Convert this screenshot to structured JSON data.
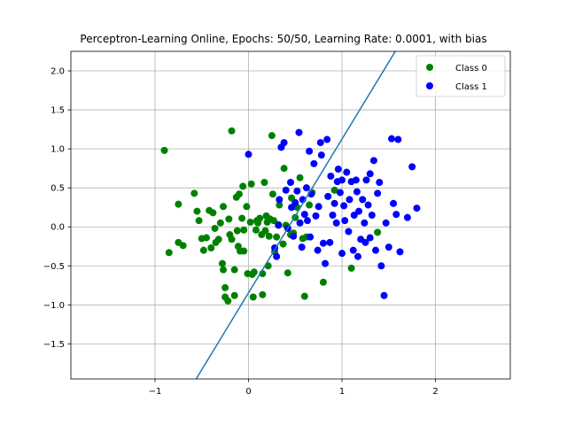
{
  "chart_data": {
    "type": "scatter",
    "title": "Perceptron-Learning Online, Epochs: 50/50, Learning Rate: 0.0001, with bias",
    "xlabel": "",
    "ylabel": "",
    "xlim": [
      -1.9,
      2.8
    ],
    "ylim": [
      -1.95,
      2.25
    ],
    "xticks": [
      -1,
      0,
      1,
      2
    ],
    "yticks": [
      -1.5,
      -1.0,
      -0.5,
      0.0,
      0.5,
      1.0,
      1.5,
      2.0
    ],
    "xtick_labels": [
      "−1",
      "0",
      "1",
      "2"
    ],
    "ytick_labels": [
      "−1.5",
      "−1.0",
      "−0.5",
      "0.0",
      "0.5",
      "1.0",
      "1.5",
      "2.0"
    ],
    "grid": true,
    "legend_position": "top-right",
    "decision_boundary": {
      "x": [
        -0.56,
        1.57
      ],
      "y": [
        -1.95,
        2.25
      ],
      "color": "#1f77b4"
    },
    "series": [
      {
        "name": "Class 0",
        "color": "#008000",
        "points": [
          [
            -0.9,
            0.98
          ],
          [
            -0.85,
            -0.33
          ],
          [
            -0.75,
            0.29
          ],
          [
            -0.75,
            -0.2
          ],
          [
            -0.7,
            -0.24
          ],
          [
            -0.58,
            0.43
          ],
          [
            -0.55,
            0.2
          ],
          [
            -0.53,
            0.08
          ],
          [
            -0.5,
            -0.15
          ],
          [
            -0.48,
            -0.3
          ],
          [
            -0.45,
            -0.14
          ],
          [
            -0.42,
            0.21
          ],
          [
            -0.4,
            -0.27
          ],
          [
            -0.38,
            0.18
          ],
          [
            -0.36,
            -0.02
          ],
          [
            -0.35,
            -0.2
          ],
          [
            -0.32,
            -0.16
          ],
          [
            -0.3,
            0.05
          ],
          [
            -0.28,
            -0.47
          ],
          [
            -0.27,
            0.26
          ],
          [
            -0.27,
            -0.55
          ],
          [
            -0.25,
            -0.78
          ],
          [
            -0.25,
            -0.9
          ],
          [
            -0.22,
            -0.95
          ],
          [
            -0.21,
            0.1
          ],
          [
            -0.2,
            -0.1
          ],
          [
            -0.18,
            1.23
          ],
          [
            -0.18,
            -0.16
          ],
          [
            -0.15,
            -0.55
          ],
          [
            -0.15,
            -0.88
          ],
          [
            -0.13,
            0.38
          ],
          [
            -0.12,
            -0.05
          ],
          [
            -0.11,
            -0.25
          ],
          [
            -0.1,
            0.42
          ],
          [
            -0.09,
            -0.31
          ],
          [
            -0.07,
            0.11
          ],
          [
            -0.06,
            0.52
          ],
          [
            -0.05,
            -0.04
          ],
          [
            -0.05,
            -0.31
          ],
          [
            -0.02,
            0.26
          ],
          [
            -0.01,
            -0.6
          ],
          [
            0.02,
            0.06
          ],
          [
            0.03,
            0.55
          ],
          [
            0.04,
            -0.61
          ],
          [
            0.05,
            -0.9
          ],
          [
            0.06,
            -0.58
          ],
          [
            0.08,
            -0.04
          ],
          [
            0.09,
            0.08
          ],
          [
            0.1,
            0.05
          ],
          [
            0.12,
            0.11
          ],
          [
            0.14,
            -0.1
          ],
          [
            0.15,
            -0.87
          ],
          [
            0.15,
            -0.6
          ],
          [
            0.17,
            0.57
          ],
          [
            0.18,
            -0.05
          ],
          [
            0.19,
            0.14
          ],
          [
            0.2,
            0.06
          ],
          [
            0.21,
            -0.5
          ],
          [
            0.22,
            -0.12
          ],
          [
            0.23,
            0.1
          ],
          [
            0.25,
            1.17
          ],
          [
            0.26,
            0.42
          ],
          [
            0.27,
            0.08
          ],
          [
            0.28,
            -0.32
          ],
          [
            0.3,
            -0.13
          ],
          [
            0.32,
            0.03
          ],
          [
            0.33,
            0.28
          ],
          [
            0.35,
            1.02
          ],
          [
            0.37,
            -0.22
          ],
          [
            0.38,
            0.75
          ],
          [
            0.4,
            0.02
          ],
          [
            0.42,
            -0.59
          ],
          [
            0.45,
            -0.1
          ],
          [
            0.46,
            0.37
          ],
          [
            0.48,
            -0.08
          ],
          [
            0.5,
            0.12
          ],
          [
            0.52,
            0.25
          ],
          [
            0.55,
            0.63
          ],
          [
            0.58,
            -0.15
          ],
          [
            0.6,
            -0.89
          ],
          [
            0.62,
            -0.13
          ],
          [
            0.65,
            0.28
          ],
          [
            0.68,
            0.44
          ],
          [
            0.8,
            -0.71
          ],
          [
            0.92,
            0.47
          ],
          [
            1.1,
            -0.53
          ],
          [
            1.38,
            -0.07
          ]
        ]
      },
      {
        "name": "Class 1",
        "color": "#0000ff",
        "points": [
          [
            0.0,
            0.93
          ],
          [
            0.28,
            -0.27
          ],
          [
            0.3,
            -0.38
          ],
          [
            0.32,
            0.02
          ],
          [
            0.33,
            0.35
          ],
          [
            0.35,
            1.02
          ],
          [
            0.38,
            1.08
          ],
          [
            0.4,
            0.47
          ],
          [
            0.42,
            -0.02
          ],
          [
            0.45,
            0.57
          ],
          [
            0.46,
            0.25
          ],
          [
            0.48,
            -0.12
          ],
          [
            0.5,
            0.31
          ],
          [
            0.52,
            0.46
          ],
          [
            0.54,
            1.21
          ],
          [
            0.55,
            0.05
          ],
          [
            0.57,
            -0.26
          ],
          [
            0.58,
            0.35
          ],
          [
            0.6,
            0.16
          ],
          [
            0.62,
            0.5
          ],
          [
            0.63,
            0.08
          ],
          [
            0.65,
            0.97
          ],
          [
            0.66,
            -0.13
          ],
          [
            0.67,
            0.42
          ],
          [
            0.7,
            0.81
          ],
          [
            0.72,
            0.14
          ],
          [
            0.74,
            -0.3
          ],
          [
            0.75,
            0.26
          ],
          [
            0.77,
            1.08
          ],
          [
            0.78,
            0.92
          ],
          [
            0.8,
            -0.21
          ],
          [
            0.82,
            -0.47
          ],
          [
            0.84,
            1.12
          ],
          [
            0.85,
            0.39
          ],
          [
            0.87,
            -0.2
          ],
          [
            0.88,
            0.65
          ],
          [
            0.9,
            0.15
          ],
          [
            0.92,
            0.3
          ],
          [
            0.94,
            0.05
          ],
          [
            0.95,
            0.58
          ],
          [
            0.96,
            0.74
          ],
          [
            0.98,
            0.44
          ],
          [
            1.0,
            -0.34
          ],
          [
            1.0,
            0.6
          ],
          [
            1.02,
            0.27
          ],
          [
            1.03,
            0.08
          ],
          [
            1.05,
            0.7
          ],
          [
            1.07,
            -0.06
          ],
          [
            1.08,
            0.35
          ],
          [
            1.1,
            0.58
          ],
          [
            1.12,
            -0.3
          ],
          [
            1.13,
            0.15
          ],
          [
            1.15,
            0.6
          ],
          [
            1.16,
            0.45
          ],
          [
            1.17,
            -0.38
          ],
          [
            1.18,
            0.2
          ],
          [
            1.2,
            -0.16
          ],
          [
            1.22,
            0.35
          ],
          [
            1.24,
            0.05
          ],
          [
            1.25,
            -0.2
          ],
          [
            1.26,
            0.6
          ],
          [
            1.28,
            0.28
          ],
          [
            1.3,
            -0.14
          ],
          [
            1.3,
            0.68
          ],
          [
            1.32,
            0.15
          ],
          [
            1.34,
            0.85
          ],
          [
            1.36,
            -0.3
          ],
          [
            1.38,
            0.43
          ],
          [
            1.4,
            0.57
          ],
          [
            1.42,
            -0.5
          ],
          [
            1.45,
            -0.88
          ],
          [
            1.47,
            0.05
          ],
          [
            1.5,
            -0.26
          ],
          [
            1.53,
            1.13
          ],
          [
            1.55,
            0.3
          ],
          [
            1.58,
            0.16
          ],
          [
            1.6,
            1.12
          ],
          [
            1.62,
            -0.32
          ],
          [
            1.7,
            0.12
          ],
          [
            1.75,
            0.77
          ],
          [
            1.8,
            0.24
          ]
        ]
      }
    ]
  }
}
